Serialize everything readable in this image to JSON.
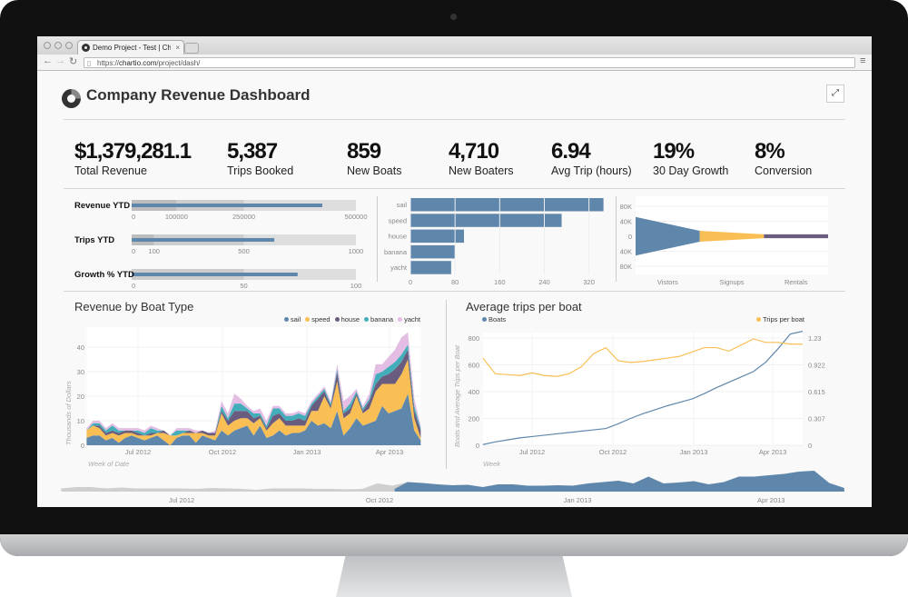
{
  "browser": {
    "tab_title": "Demo Project - Test | Charti",
    "url_host": "chartio.com",
    "url_scheme": "https://",
    "url_path": "/project/dash/",
    "icons": {
      "back": "arrow-left",
      "forward": "arrow-right",
      "reload": "reload",
      "page": "document",
      "menu": "hamburger",
      "close_tab": "close"
    }
  },
  "dashboard": {
    "title": "Company Revenue Dashboard",
    "expand_icon": "expand"
  },
  "kpis": [
    {
      "value": "$1,379,281.1",
      "label": "Total Revenue"
    },
    {
      "value": "5,387",
      "label": "Trips Booked"
    },
    {
      "value": "859",
      "label": "New Boats"
    },
    {
      "value": "4,710",
      "label": "New Boaters"
    },
    {
      "value": "6.94",
      "label": "Avg Trip (hours)"
    },
    {
      "value": "19%",
      "label": "30 Day Growth"
    },
    {
      "value": "8%",
      "label": "Conversion"
    }
  ],
  "colors": {
    "sail": "#5f87ab",
    "speed": "#f9bf55",
    "house": "#6a5c7e",
    "banana": "#43aeb9",
    "yacht": "#e3bde3",
    "grey": "#cfcfcf",
    "bar": "#5f87ab"
  },
  "chart_data": [
    {
      "type": "bullet",
      "bullets": [
        {
          "label": "Revenue YTD",
          "value": 425000,
          "ranges": [
            100000,
            250000,
            500000
          ],
          "ticks": [
            "0",
            "100000",
            "250000",
            "500000"
          ],
          "tick_values": [
            0,
            100000,
            250000,
            500000
          ],
          "max": 500000
        },
        {
          "label": "Trips YTD",
          "value": 636,
          "ranges": [
            100,
            500,
            1000
          ],
          "ticks": [
            "0",
            "100",
            "500",
            "1000"
          ],
          "tick_values": [
            0,
            100,
            500,
            1000
          ],
          "max": 1000
        },
        {
          "label": "Growth % YTD",
          "value": 74,
          "ranges": [
            50,
            100
          ],
          "ticks": [
            "0",
            "50",
            "100"
          ],
          "tick_values": [
            0,
            50,
            100
          ],
          "max": 100
        }
      ]
    },
    {
      "type": "bar",
      "orientation": "horizontal",
      "categories": [
        "sail",
        "speed",
        "house",
        "banana",
        "yacht"
      ],
      "values": [
        346,
        271,
        96,
        80,
        73
      ],
      "xlim": [
        0,
        345
      ],
      "xticks": [
        0,
        80,
        160,
        240,
        320
      ]
    },
    {
      "type": "funnel",
      "categories": [
        "Vistors",
        "Signups",
        "Rentals"
      ],
      "values": [
        50000,
        14000,
        5000
      ],
      "yticks": [
        "80K",
        "40K",
        "0",
        "40K",
        "80K"
      ],
      "ylim": [
        -90000,
        90000
      ]
    },
    {
      "type": "area",
      "stacked": true,
      "title": "Revenue by Boat Type",
      "xlabel": "Week of Date",
      "ylabel": "Thousands of Dollars",
      "ylim": [
        0,
        48
      ],
      "yticks": [
        0,
        10,
        20,
        30,
        40
      ],
      "xticks": [
        {
          "label": "Jul 2012",
          "date": "2012-07-01"
        },
        {
          "label": "Oct 2012",
          "date": "2012-10-01"
        },
        {
          "label": "Jan 2013",
          "date": "2013-01-01"
        },
        {
          "label": "Apr 2013",
          "date": "2013-04-01"
        }
      ],
      "x": [
        "2012-05-06",
        "2012-05-13",
        "2012-05-20",
        "2012-05-27",
        "2012-06-03",
        "2012-06-10",
        "2012-06-17",
        "2012-06-24",
        "2012-07-01",
        "2012-07-08",
        "2012-07-15",
        "2012-07-22",
        "2012-07-29",
        "2012-08-05",
        "2012-08-12",
        "2012-08-19",
        "2012-08-26",
        "2012-09-02",
        "2012-09-09",
        "2012-09-16",
        "2012-09-23",
        "2012-09-30",
        "2012-10-07",
        "2012-10-14",
        "2012-10-21",
        "2012-10-28",
        "2012-11-04",
        "2012-11-11",
        "2012-11-18",
        "2012-11-25",
        "2012-12-02",
        "2012-12-09",
        "2012-12-16",
        "2012-12-23",
        "2012-12-30",
        "2013-01-06",
        "2013-01-13",
        "2013-01-20",
        "2013-01-27",
        "2013-02-03",
        "2013-02-10",
        "2013-02-17",
        "2013-02-24",
        "2013-03-03",
        "2013-03-10",
        "2013-03-17",
        "2013-03-24",
        "2013-03-31",
        "2013-04-07",
        "2013-04-14",
        "2013-04-21",
        "2013-04-28",
        "2013-05-05"
      ],
      "series": [
        {
          "name": "sail",
          "values": [
            3,
            4,
            4,
            2,
            3,
            1,
            3,
            4,
            3,
            2,
            3,
            4,
            2,
            0,
            3,
            4,
            4,
            1,
            4,
            3,
            2,
            6,
            4,
            6,
            7,
            8,
            4,
            8,
            3,
            4,
            6,
            4,
            5,
            5,
            6,
            10,
            8,
            9,
            7,
            14,
            4,
            7,
            11,
            8,
            9,
            10,
            16,
            13,
            14,
            15,
            21,
            6,
            2
          ]
        },
        {
          "name": "speed",
          "values": [
            3,
            4,
            3,
            2,
            2,
            3,
            2,
            1,
            1,
            2,
            1,
            1,
            3,
            4,
            1,
            1,
            1,
            4,
            1,
            1,
            2,
            7,
            4,
            4,
            4,
            3,
            5,
            3,
            3,
            5,
            5,
            4,
            3,
            3,
            2,
            4,
            6,
            11,
            8,
            12,
            7,
            6,
            9,
            5,
            6,
            12,
            9,
            12,
            11,
            14,
            14,
            5,
            1
          ]
        },
        {
          "name": "house",
          "values": [
            0,
            0,
            1,
            1,
            1,
            1,
            1,
            1,
            1,
            0,
            1,
            0,
            1,
            0,
            0,
            0,
            1,
            0,
            1,
            1,
            1,
            1,
            2,
            4,
            3,
            3,
            2,
            1,
            1,
            3,
            2,
            2,
            2,
            3,
            2,
            2,
            5,
            2,
            1,
            4,
            2,
            2,
            1,
            1,
            3,
            3,
            3,
            4,
            6,
            5,
            4,
            3,
            3
          ]
        },
        {
          "name": "banana",
          "values": [
            0,
            1,
            1,
            1,
            2,
            1,
            0,
            0,
            1,
            1,
            2,
            1,
            0,
            0,
            2,
            1,
            0,
            0,
            0,
            0,
            0,
            2,
            1,
            3,
            3,
            1,
            2,
            1,
            1,
            3,
            2,
            2,
            2,
            2,
            2,
            1,
            1,
            1,
            1,
            1,
            1,
            2,
            1,
            1,
            1,
            4,
            2,
            3,
            3,
            3,
            2,
            2,
            1
          ]
        },
        {
          "name": "yacht",
          "values": [
            1,
            1,
            1,
            1,
            1,
            1,
            1,
            1,
            1,
            1,
            1,
            1,
            0,
            0,
            1,
            1,
            1,
            1,
            0,
            0,
            1,
            2,
            2,
            4,
            2,
            1,
            1,
            2,
            2,
            1,
            1,
            1,
            1,
            1,
            1,
            1,
            1,
            1,
            1,
            2,
            4,
            3,
            1,
            1,
            2,
            4,
            3,
            4,
            5,
            7,
            5,
            3,
            1
          ]
        }
      ]
    },
    {
      "type": "line",
      "title": "Average trips per boat",
      "xlabel": "Week",
      "ylabel": "Boats and Average Trips per Boat",
      "xticks": [
        {
          "label": "Jul 2012",
          "date": "2012-07-01"
        },
        {
          "label": "Oct 2012",
          "date": "2012-10-01"
        },
        {
          "label": "Jan 2013",
          "date": "2013-01-01"
        },
        {
          "label": "Apr 2013",
          "date": "2013-04-01"
        }
      ],
      "ylim_left": [
        0,
        800
      ],
      "yticks_left": [
        0,
        200,
        400,
        600,
        800
      ],
      "ylim_right": [
        0,
        1.23
      ],
      "yticks_right": [
        "0",
        "0.307",
        "0.615",
        "0.922",
        "1.23"
      ],
      "x": [
        "2012-05-06",
        "2012-05-20",
        "2012-06-03",
        "2012-06-17",
        "2012-07-01",
        "2012-07-15",
        "2012-07-29",
        "2012-08-12",
        "2012-08-26",
        "2012-09-09",
        "2012-09-23",
        "2012-10-07",
        "2012-10-21",
        "2012-11-04",
        "2012-11-18",
        "2012-12-02",
        "2012-12-16",
        "2012-12-30",
        "2013-01-13",
        "2013-01-27",
        "2013-02-10",
        "2013-02-24",
        "2013-03-10",
        "2013-03-24",
        "2013-04-07",
        "2013-04-21",
        "2013-05-05"
      ],
      "series": [
        {
          "name": "Boats",
          "axis": "left",
          "color": "#5f87ab",
          "values": [
            5,
            25,
            40,
            55,
            65,
            75,
            85,
            95,
            105,
            115,
            125,
            160,
            200,
            235,
            265,
            295,
            320,
            345,
            385,
            430,
            470,
            510,
            550,
            620,
            720,
            830,
            850
          ]
        },
        {
          "name": "Trips per boat",
          "axis": "right",
          "color": "#f9bf55",
          "values": [
            1.0,
            0.82,
            0.81,
            0.8,
            0.83,
            0.8,
            0.79,
            0.82,
            0.9,
            1.05,
            1.12,
            0.97,
            0.95,
            0.96,
            0.98,
            1.0,
            1.02,
            1.07,
            1.12,
            1.12,
            1.08,
            1.15,
            1.22,
            1.18,
            1.18,
            1.16,
            1.16
          ]
        }
      ]
    },
    {
      "type": "range-selector",
      "selected_start": "2012-10-08",
      "selected_end": "2013-05-05",
      "xticks": [
        {
          "label": "Jul 2012",
          "date": "2012-07-01"
        },
        {
          "label": "Oct 2012",
          "date": "2012-10-01"
        },
        {
          "label": "Jan 2013",
          "date": "2013-01-01"
        },
        {
          "label": "Apr 2013",
          "date": "2013-04-01"
        }
      ]
    }
  ]
}
